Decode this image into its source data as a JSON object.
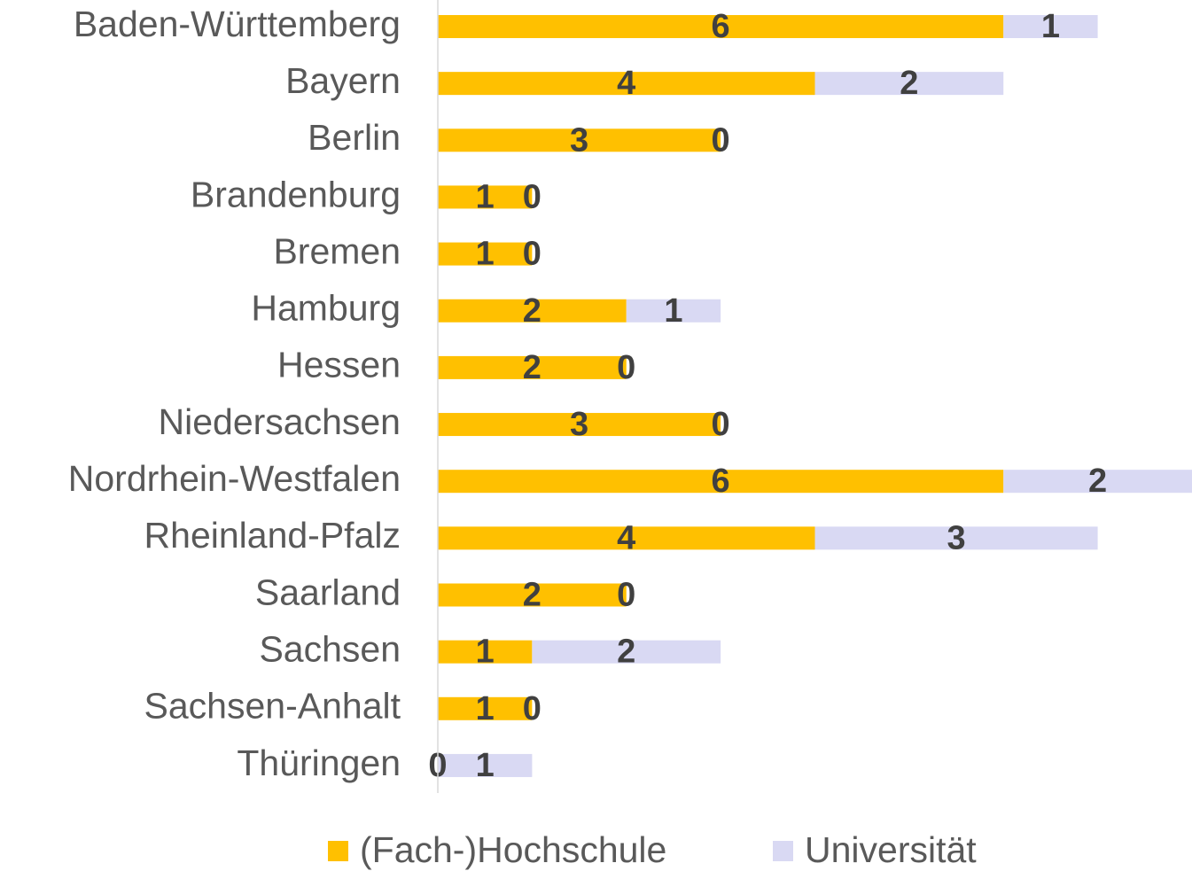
{
  "chart_data": {
    "type": "stacked-bar-horizontal",
    "categories": [
      "Baden-Württemberg",
      "Bayern",
      "Berlin",
      "Brandenburg",
      "Bremen",
      "Hamburg",
      "Hessen",
      "Niedersachsen",
      "Nordrhein-Westfalen",
      "Rheinland-Pfalz",
      "Saarland",
      "Sachsen",
      "Sachsen-Anhalt",
      "Thüringen"
    ],
    "series": [
      {
        "name": "(Fach-)Hochschule",
        "color": "#ffc000",
        "values": [
          6,
          4,
          3,
          1,
          1,
          2,
          2,
          3,
          6,
          4,
          2,
          1,
          1,
          0
        ]
      },
      {
        "name": "Universität",
        "color": "#d9d9f3",
        "values": [
          1,
          2,
          0,
          0,
          0,
          1,
          0,
          0,
          2,
          3,
          0,
          2,
          0,
          1
        ]
      }
    ],
    "xlim": [
      0,
      8
    ],
    "legend": "bottom"
  }
}
